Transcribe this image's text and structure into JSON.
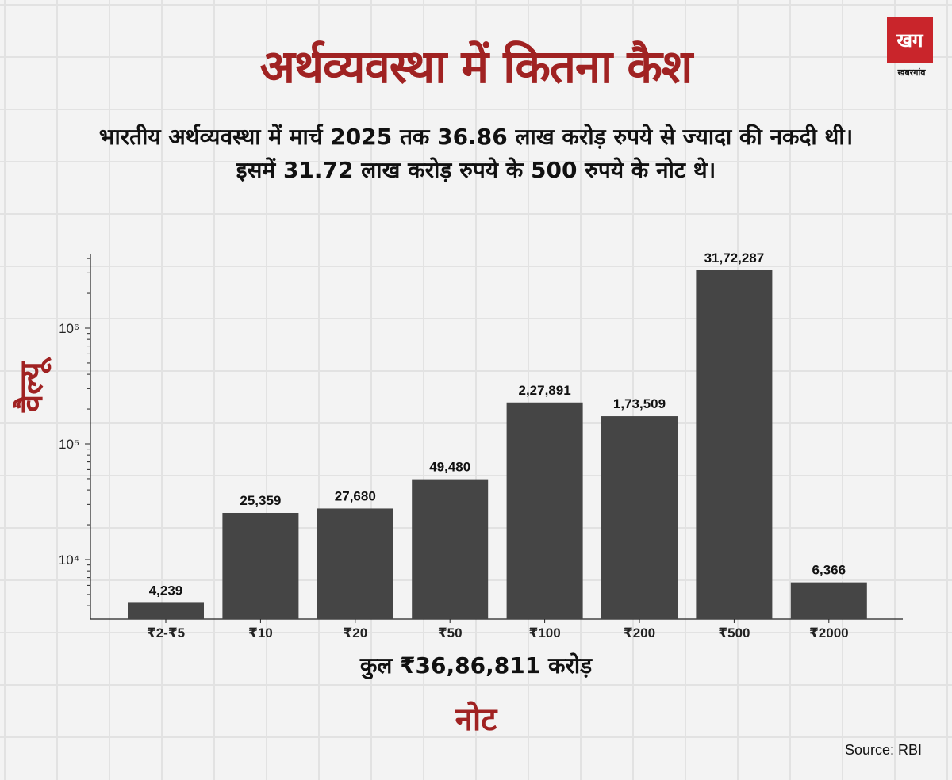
{
  "header": {
    "title": "अर्थव्यवस्था में कितना कैश",
    "subtitle_line1": "भारतीय अर्थव्यवस्था में मार्च 2025 तक 36.86 लाख करोड़ रुपये से ज्यादा की नकदी थी।",
    "subtitle_line2": "इसमें 31.72 लाख करोड़ रुपये के 500 रुपये के नोट थे।"
  },
  "logo": {
    "mark": "खग",
    "name": "खबरगांव"
  },
  "chart_data": {
    "type": "bar",
    "title": "अर्थव्यवस्था में कितना कैश",
    "xlabel": "नोट",
    "ylabel": "वैल्यू",
    "yscale": "log",
    "ylim": [
      3000,
      4500000
    ],
    "yticks": [
      {
        "value": 10000,
        "label": "10⁴"
      },
      {
        "value": 100000,
        "label": "10⁵"
      },
      {
        "value": 1000000,
        "label": "10⁶"
      }
    ],
    "categories": [
      "₹2-₹5",
      "₹10",
      "₹20",
      "₹50",
      "₹100",
      "₹200",
      "₹500",
      "₹2000"
    ],
    "values": [
      4239,
      25359,
      27680,
      49480,
      227891,
      173509,
      3172287,
      6366
    ],
    "value_labels": [
      "4,239",
      "25,359",
      "27,680",
      "49,480",
      "2,27,891",
      "1,73,509",
      "31,72,287",
      "6,366"
    ],
    "bar_color": "#454545",
    "annotation": "कुल ₹36,86,811 करोड़"
  },
  "footer": {
    "source": "Source: RBI"
  },
  "colors": {
    "accent": "#a02222",
    "bar": "#454545",
    "background": "#f3f3f3"
  }
}
